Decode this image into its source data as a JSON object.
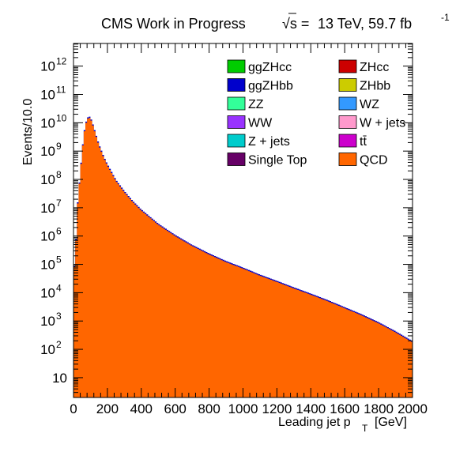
{
  "chart_data": {
    "type": "area",
    "title_main": "CMS Work in Progress",
    "title_energy": "13 TeV, 59.7 fb",
    "title_exponent": "-1",
    "xlabel_main": "Leading jet p",
    "xlabel_sub": "T",
    "xlabel_unit": "[GeV]",
    "ylabel": "Events/10.0",
    "xlim": [
      0,
      2000
    ],
    "ylim_log10": [
      0.3,
      12.8
    ],
    "yscale": "log",
    "x_ticks": [
      {
        "value": 0,
        "label": "0"
      },
      {
        "value": 200,
        "label": "200"
      },
      {
        "value": 400,
        "label": "400"
      },
      {
        "value": 600,
        "label": "600"
      },
      {
        "value": 800,
        "label": "800"
      },
      {
        "value": 1000,
        "label": "1000"
      },
      {
        "value": 1200,
        "label": "1200"
      },
      {
        "value": 1400,
        "label": "1400"
      },
      {
        "value": 1600,
        "label": "1600"
      },
      {
        "value": 1800,
        "label": "1800"
      },
      {
        "value": 2000,
        "label": "2000"
      }
    ],
    "y_ticks": [
      {
        "exp": 1,
        "base": "10",
        "sup": ""
      },
      {
        "exp": 2,
        "base": "10",
        "sup": "2"
      },
      {
        "exp": 3,
        "base": "10",
        "sup": "3"
      },
      {
        "exp": 4,
        "base": "10",
        "sup": "4"
      },
      {
        "exp": 5,
        "base": "10",
        "sup": "5"
      },
      {
        "exp": 6,
        "base": "10",
        "sup": "6"
      },
      {
        "exp": 7,
        "base": "10",
        "sup": "7"
      },
      {
        "exp": 8,
        "base": "10",
        "sup": "8"
      },
      {
        "exp": 9,
        "base": "10",
        "sup": "9"
      },
      {
        "exp": 10,
        "base": "10",
        "sup": "10"
      },
      {
        "exp": 11,
        "base": "10",
        "sup": "11"
      },
      {
        "exp": 12,
        "base": "10",
        "sup": "12"
      }
    ],
    "legend_position": "top-right",
    "legend": [
      {
        "name": "ggZHcc",
        "color": "#00cc00"
      },
      {
        "name": "ZHcc",
        "color": "#cc0000"
      },
      {
        "name": "ggZHbb",
        "color": "#0000cc"
      },
      {
        "name": "ZHbb",
        "color": "#cccc00"
      },
      {
        "name": "ZZ",
        "color": "#33ff99"
      },
      {
        "name": "WZ",
        "color": "#3399ff"
      },
      {
        "name": "WW",
        "color": "#9933ff"
      },
      {
        "name": "W + jets",
        "color": "#ff99cc"
      },
      {
        "name": "Z + jets",
        "color": "#00cccc"
      },
      {
        "name": "tt̄",
        "color": "#cc00cc"
      },
      {
        "name": "Single Top",
        "color": "#660066"
      },
      {
        "name": "QCD",
        "color": "#ff6600"
      }
    ],
    "series": [
      {
        "name": "QCD",
        "color": "#ff6600",
        "log10_points": [
          [
            0,
            4.9
          ],
          [
            10,
            4.9
          ],
          [
            20,
            6.8
          ],
          [
            30,
            7.5
          ],
          [
            40,
            8.2
          ],
          [
            50,
            8.9
          ],
          [
            60,
            9.5
          ],
          [
            70,
            9.9
          ],
          [
            80,
            10.1
          ],
          [
            90,
            10.2
          ],
          [
            100,
            10.15
          ],
          [
            110,
            10.0
          ],
          [
            120,
            9.8
          ],
          [
            130,
            9.6
          ],
          [
            140,
            9.4
          ],
          [
            150,
            9.2
          ],
          [
            160,
            9.05
          ],
          [
            180,
            8.75
          ],
          [
            200,
            8.5
          ],
          [
            250,
            7.95
          ],
          [
            300,
            7.55
          ],
          [
            350,
            7.2
          ],
          [
            400,
            6.9
          ],
          [
            500,
            6.4
          ],
          [
            600,
            6.0
          ],
          [
            700,
            5.65
          ],
          [
            800,
            5.35
          ],
          [
            900,
            5.08
          ],
          [
            1000,
            4.85
          ],
          [
            1100,
            4.6
          ],
          [
            1200,
            4.38
          ],
          [
            1300,
            4.15
          ],
          [
            1400,
            3.93
          ],
          [
            1500,
            3.7
          ],
          [
            1600,
            3.45
          ],
          [
            1700,
            3.2
          ],
          [
            1800,
            2.92
          ],
          [
            1900,
            2.6
          ],
          [
            2000,
            2.25
          ]
        ]
      }
    ]
  }
}
